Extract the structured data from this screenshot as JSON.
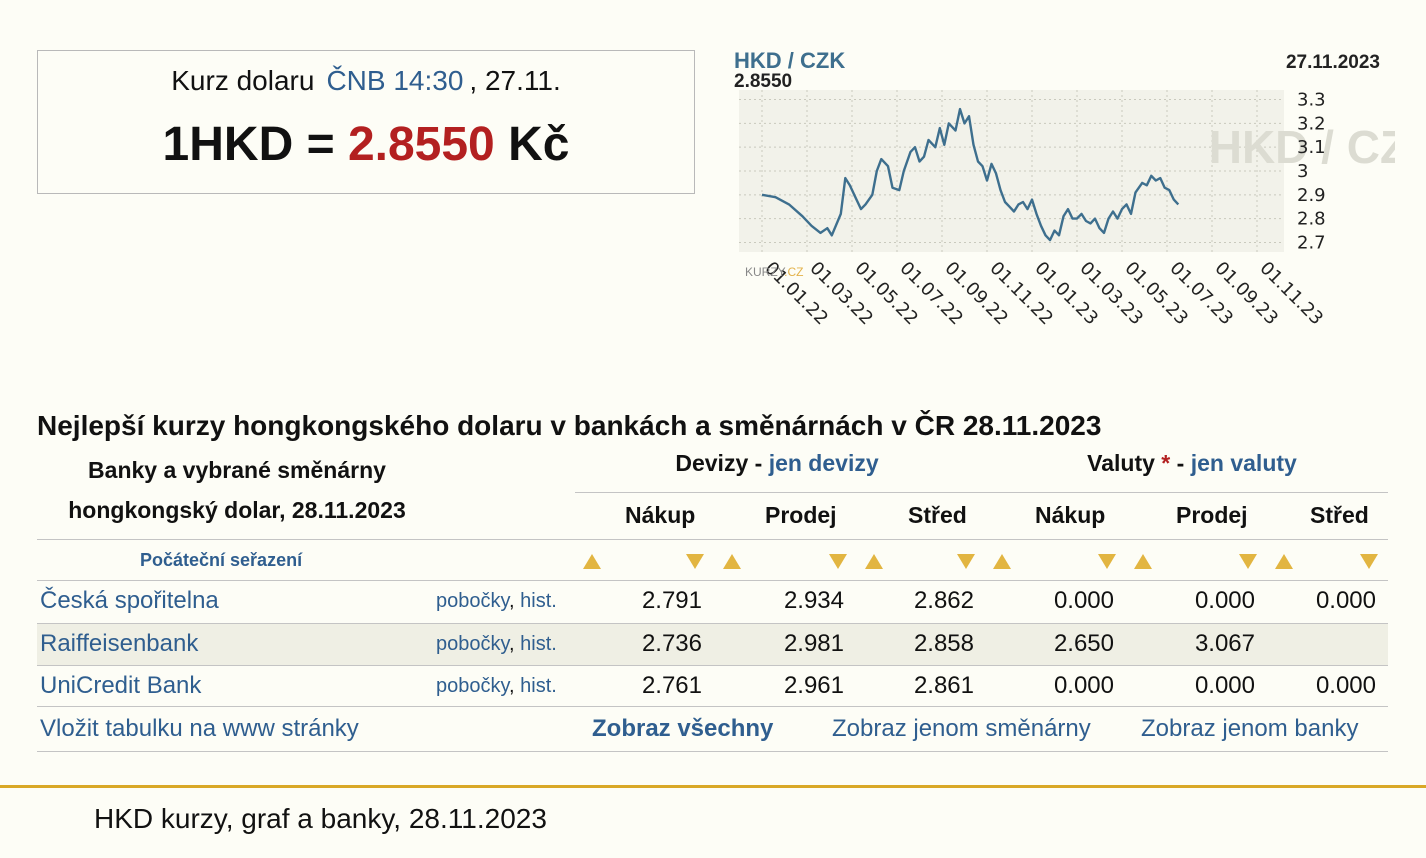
{
  "rate_box": {
    "label": "Kurz dolaru",
    "source": "ČNB 14:30",
    "date": ", 27.11.",
    "lhs": "1HKD = ",
    "value": "2.8550",
    "unit": " Kč"
  },
  "chart": {
    "pair": "HKD / CZK",
    "current": "2.8550",
    "date": "27.11.2023",
    "watermark": "HKD / CZK",
    "brand_a": "KURZY",
    "brand_b": ".CZ"
  },
  "chart_data": {
    "type": "line",
    "title": "HKD / CZK",
    "ylim": [
      2.66,
      3.34
    ],
    "y_ticks": [
      "3.3",
      "3.2",
      "3.1",
      "3",
      "2.9",
      "2.8",
      "2.7"
    ],
    "y_tick_values": [
      3.3,
      3.2,
      3.1,
      3.0,
      2.9,
      2.8,
      2.7
    ],
    "x_tick_labels": [
      "01.01.22",
      "01.03.22",
      "01.05.22",
      "01.07.22",
      "01.09.22",
      "01.11.22",
      "01.01.23",
      "01.03.23",
      "01.05.23",
      "01.07.23",
      "01.09.23",
      "01.11.23"
    ],
    "grid": true,
    "series": [
      {
        "color": "#3e6f8e",
        "points": [
          [
            0,
            2.9
          ],
          [
            0.3,
            2.89
          ],
          [
            0.6,
            2.86
          ],
          [
            0.9,
            2.81
          ],
          [
            1.1,
            2.77
          ],
          [
            1.3,
            2.74
          ],
          [
            1.45,
            2.76
          ],
          [
            1.55,
            2.73
          ],
          [
            1.75,
            2.82
          ],
          [
            1.85,
            2.97
          ],
          [
            1.95,
            2.94
          ],
          [
            2.1,
            2.88
          ],
          [
            2.2,
            2.84
          ],
          [
            2.3,
            2.86
          ],
          [
            2.45,
            2.9
          ],
          [
            2.55,
            3.0
          ],
          [
            2.65,
            3.05
          ],
          [
            2.8,
            3.02
          ],
          [
            2.9,
            2.93
          ],
          [
            3.05,
            2.92
          ],
          [
            3.15,
            3.0
          ],
          [
            3.3,
            3.08
          ],
          [
            3.4,
            3.1
          ],
          [
            3.5,
            3.04
          ],
          [
            3.6,
            3.06
          ],
          [
            3.7,
            3.13
          ],
          [
            3.85,
            3.1
          ],
          [
            3.95,
            3.18
          ],
          [
            4.05,
            3.11
          ],
          [
            4.15,
            3.2
          ],
          [
            4.3,
            3.17
          ],
          [
            4.4,
            3.26
          ],
          [
            4.5,
            3.2
          ],
          [
            4.6,
            3.23
          ],
          [
            4.7,
            3.11
          ],
          [
            4.8,
            3.04
          ],
          [
            4.9,
            3.02
          ],
          [
            5.0,
            2.96
          ],
          [
            5.1,
            3.03
          ],
          [
            5.2,
            2.99
          ],
          [
            5.3,
            2.92
          ],
          [
            5.4,
            2.87
          ],
          [
            5.5,
            2.85
          ],
          [
            5.6,
            2.83
          ],
          [
            5.7,
            2.86
          ],
          [
            5.8,
            2.87
          ],
          [
            5.9,
            2.84
          ],
          [
            6.0,
            2.88
          ],
          [
            6.1,
            2.82
          ],
          [
            6.2,
            2.77
          ],
          [
            6.3,
            2.73
          ],
          [
            6.4,
            2.71
          ],
          [
            6.5,
            2.75
          ],
          [
            6.6,
            2.73
          ],
          [
            6.7,
            2.81
          ],
          [
            6.8,
            2.84
          ],
          [
            6.9,
            2.8
          ],
          [
            7.0,
            2.8
          ],
          [
            7.1,
            2.82
          ],
          [
            7.2,
            2.79
          ],
          [
            7.3,
            2.78
          ],
          [
            7.4,
            2.8
          ],
          [
            7.5,
            2.76
          ],
          [
            7.6,
            2.74
          ],
          [
            7.7,
            2.8
          ],
          [
            7.8,
            2.83
          ],
          [
            7.9,
            2.8
          ],
          [
            8.0,
            2.84
          ],
          [
            8.1,
            2.86
          ],
          [
            8.2,
            2.82
          ],
          [
            8.3,
            2.91
          ],
          [
            8.45,
            2.95
          ],
          [
            8.55,
            2.94
          ],
          [
            8.65,
            2.98
          ],
          [
            8.75,
            2.96
          ],
          [
            8.85,
            2.97
          ],
          [
            8.95,
            2.93
          ],
          [
            9.05,
            2.92
          ],
          [
            9.15,
            2.88
          ],
          [
            9.25,
            2.86
          ]
        ]
      }
    ]
  },
  "section_title": "Nejlepší kurzy hongkongského dolaru v bankách a směnárnách v ČR 28.11.2023",
  "table": {
    "header_left_1": "Banky a vybrané směnárny",
    "header_left_2": "hongkongský dolar, 28.11.2023",
    "devizy_label": "Devizy",
    "devizy_sep": " - ",
    "devizy_link": "jen devizy",
    "valuty_label": "Valuty",
    "valuty_star": " *",
    "valuty_sep": " - ",
    "valuty_link": "jen valuty",
    "col_buy": "Nákup",
    "col_sell": "Prodej",
    "col_mid": "Střed",
    "sort_label": "Počáteční seřazení",
    "link_branches": "pobočky",
    "link_sep": ", ",
    "link_hist": "hist.",
    "rows": [
      {
        "bank": "Česká spořitelna",
        "d_buy": "2.791",
        "d_sell": "2.934",
        "d_mid": "2.862",
        "v_buy": "0.000",
        "v_sell": "0.000",
        "v_mid": "0.000"
      },
      {
        "bank": "Raiffeisenbank",
        "d_buy": "2.736",
        "d_sell": "2.981",
        "d_mid": "2.858",
        "v_buy": "2.650",
        "v_sell": "3.067",
        "v_mid": ""
      },
      {
        "bank": "UniCredit Bank",
        "d_buy": "2.761",
        "d_sell": "2.961",
        "d_mid": "2.861",
        "v_buy": "0.000",
        "v_sell": "0.000",
        "v_mid": "0.000"
      }
    ],
    "embed_link": "Vložit tabulku na www stránky",
    "show_all": "Zobraz všechny",
    "show_exchanges": "Zobraz jenom směnárny",
    "show_banks": "Zobraz jenom banky"
  },
  "footer_title": "HKD kurzy, graf a banky, 28.11.2023",
  "colors": {
    "accent_link": "#2f5e8f",
    "rate_red": "#b32020",
    "gold": "#d9a826",
    "sort_arrow": "#e2b541"
  }
}
